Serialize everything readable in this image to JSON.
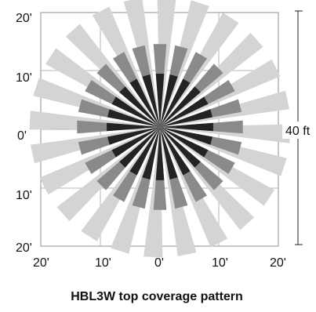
{
  "caption": "HBL3W top coverage pattern",
  "dimension_label": "40 ft",
  "y_tick_labels": [
    "20'",
    "10'",
    "0'",
    "10'",
    "20'"
  ],
  "x_tick_labels": [
    "20'",
    "10'",
    "0'",
    "10'",
    "20'"
  ],
  "pattern": {
    "units": "ft",
    "extent": 20,
    "grid_step": 10,
    "ray_count": 24,
    "ray_step_degrees": 15,
    "rings": [
      {
        "level": "outer",
        "color": "#d4d4d4",
        "length_ft": 22,
        "width_ft": 3.2
      },
      {
        "level": "middle",
        "color": "#8a8a8a",
        "length_ft": 14,
        "width_ft": 2.2
      },
      {
        "level": "inner",
        "color": "#232323",
        "length_ft": 9,
        "width_ft": 1.4
      }
    ]
  }
}
